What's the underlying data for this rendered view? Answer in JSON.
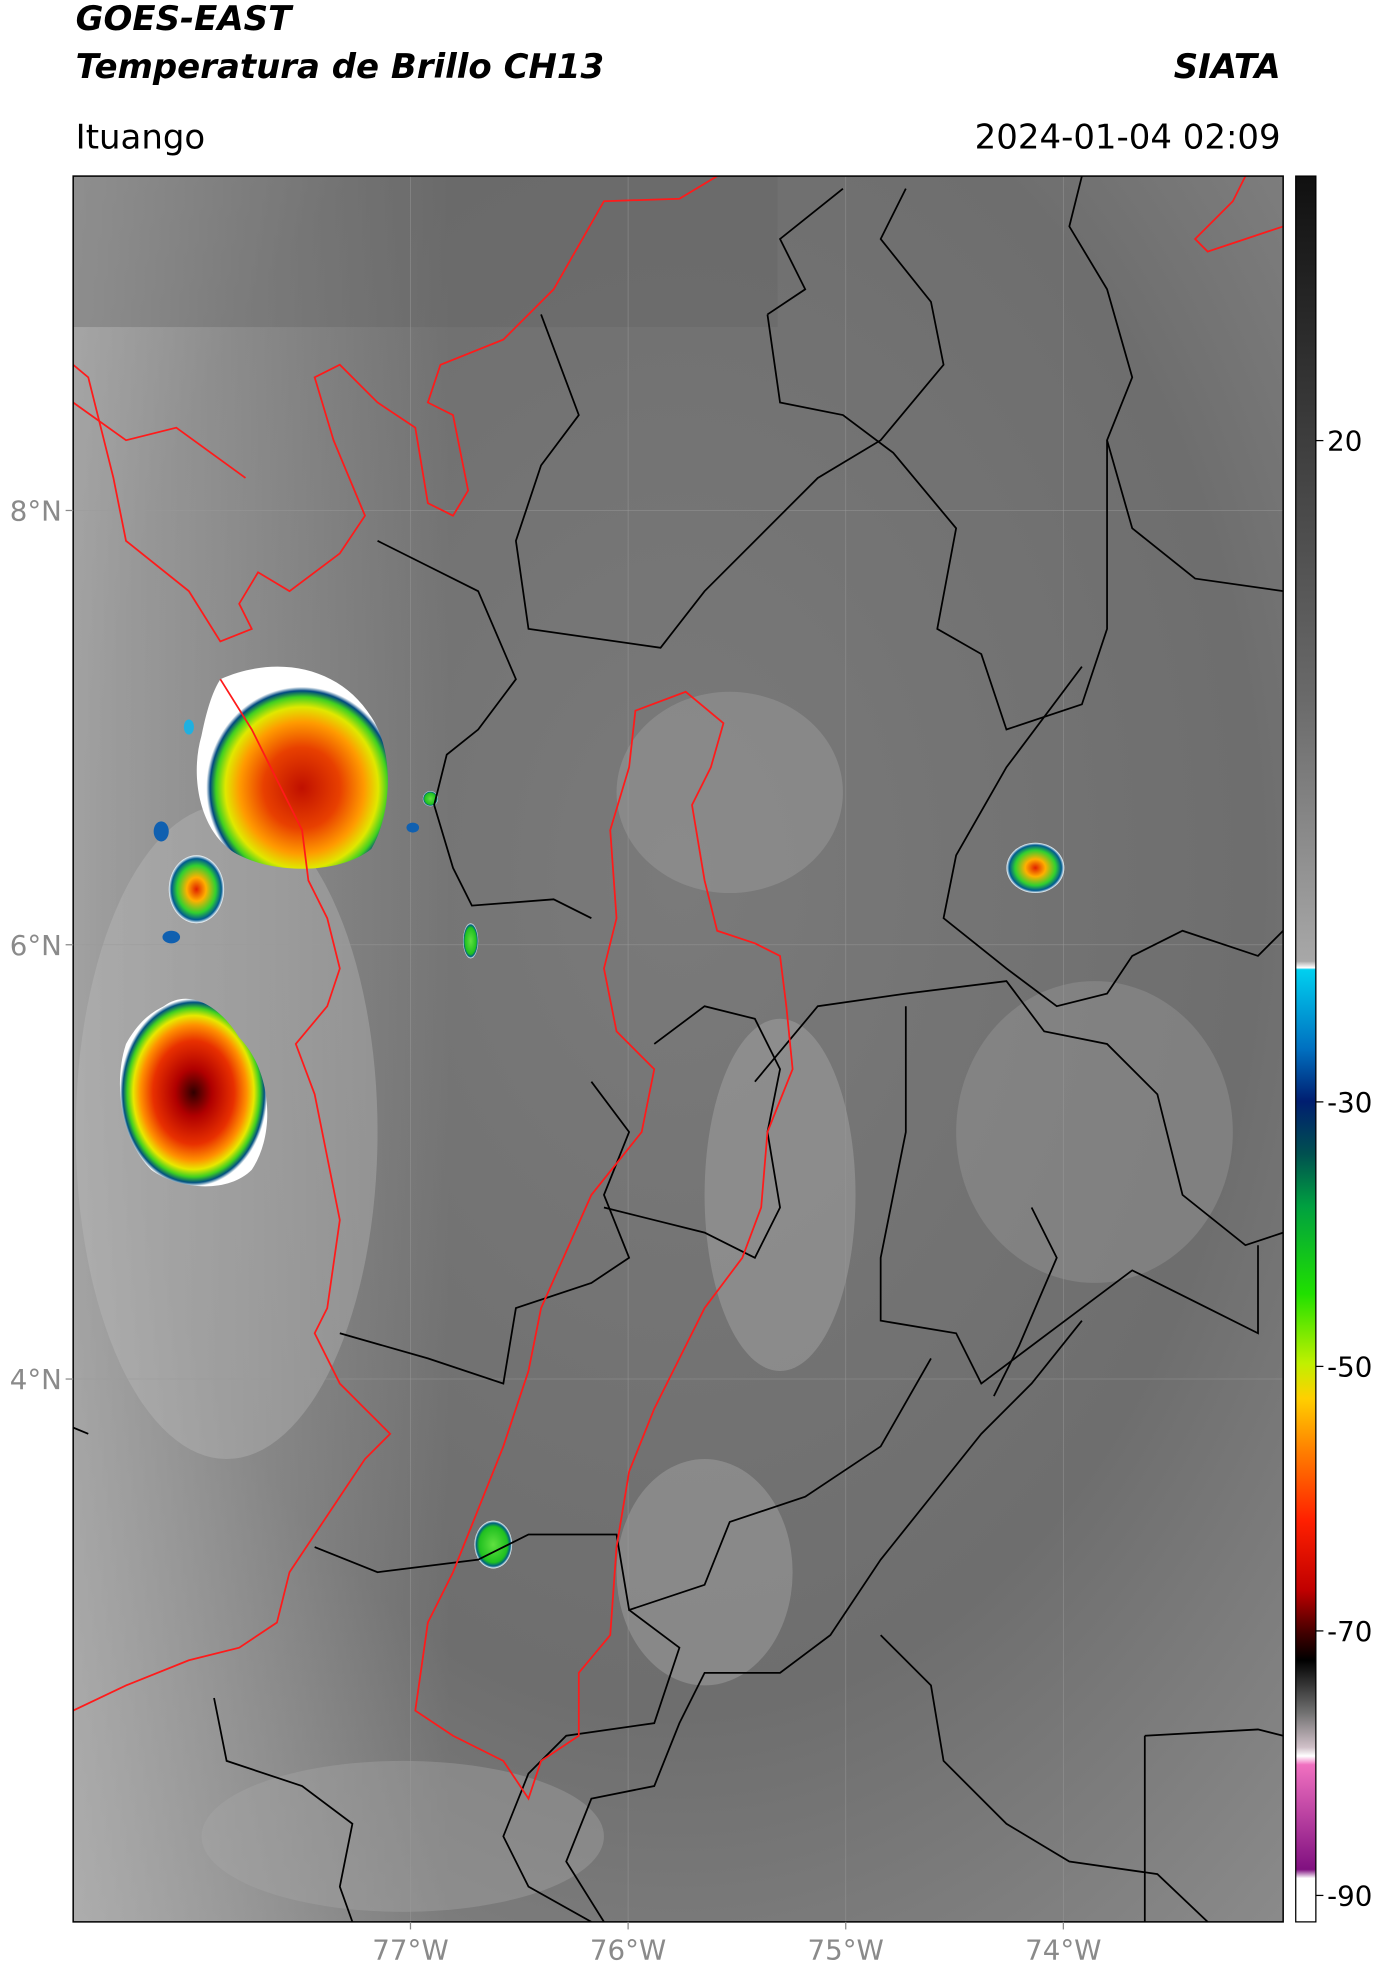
{
  "header": {
    "title_line1": "GOES-EAST",
    "title_line2": "Temperatura de Brillo CH13",
    "brand": "SIATA",
    "location": "Ituango",
    "timestamp": "2024-01-04 02:09"
  },
  "map": {
    "lat_range": [
      1.5,
      9.54
    ],
    "lon_range": [
      -78.55,
      -72.99
    ],
    "lat_ticks": [
      {
        "value": 8,
        "label": "8°N"
      },
      {
        "value": 6,
        "label": "6°N"
      },
      {
        "value": 4,
        "label": "4°N"
      }
    ],
    "lon_ticks": [
      {
        "value": -77,
        "label": "77°W"
      },
      {
        "value": -76,
        "label": "76°W"
      },
      {
        "value": -75,
        "label": "75°W"
      },
      {
        "value": -74,
        "label": "74°W"
      }
    ]
  },
  "colorbar": {
    "range": [
      -92,
      40
    ],
    "ticks": [
      20,
      -30,
      -50,
      -70,
      -90
    ]
  }
}
